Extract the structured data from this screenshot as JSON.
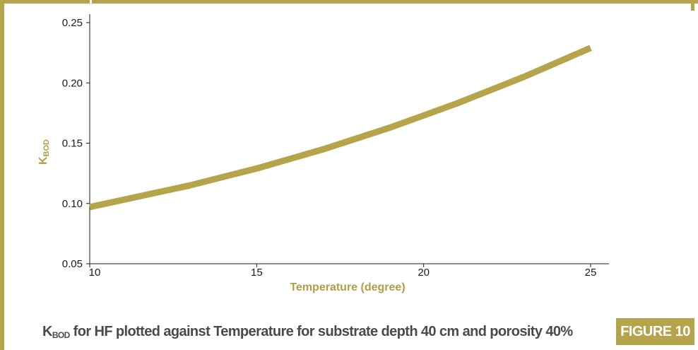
{
  "colors": {
    "accent": "#b5a44a",
    "line": "#b5a44a",
    "axis": "#1a1a1a",
    "caption_text": "#4a4a4a"
  },
  "chart_data": {
    "type": "line",
    "title": "",
    "xlabel": "Temperature (degree)",
    "ylabel_main": "K",
    "ylabel_sub": "BOD",
    "xlim": [
      10,
      25
    ],
    "ylim": [
      0.05,
      0.25
    ],
    "x_ticks": [
      10,
      15,
      20,
      25
    ],
    "x_tick_labels": [
      "10",
      "15",
      "20",
      "25"
    ],
    "y_ticks": [
      0.05,
      0.1,
      0.15,
      0.2,
      0.25
    ],
    "y_tick_labels": [
      "0.05",
      "0.10",
      "0.15",
      "0.20",
      "0.25"
    ],
    "grid": false,
    "series": [
      {
        "x": [
          10,
          11,
          12,
          13,
          14,
          15,
          16,
          17,
          18,
          19,
          20,
          21,
          22,
          23,
          24,
          25
        ],
        "y": [
          0.097,
          0.103,
          0.109,
          0.115,
          0.122,
          0.129,
          0.137,
          0.145,
          0.154,
          0.163,
          0.173,
          0.183,
          0.194,
          0.205,
          0.217,
          0.229
        ]
      }
    ]
  },
  "caption": {
    "main": "K",
    "sub": "BOD",
    "rest": " for HF plotted against Temperature for substrate depth 40 cm and porosity 40%"
  },
  "figure_label": "FIGURE 10"
}
